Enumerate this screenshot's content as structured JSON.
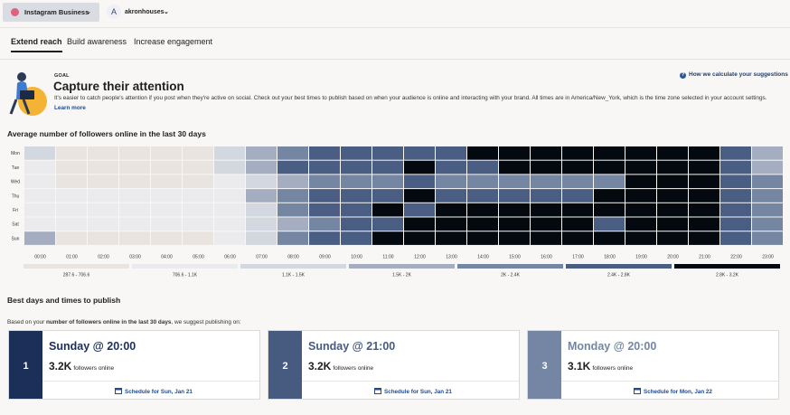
{
  "topbar": {
    "account": "Instagram Business",
    "avatar": "A",
    "profile": "akronhouses"
  },
  "tabs": [
    "Extend reach",
    "Build awareness",
    "Increase engagement"
  ],
  "goal": {
    "label": "GOAL",
    "title": "Capture their attention",
    "description": "It's easier to catch people's attention if you post when they're active on social. Check out your best times to publish based on when your audience is online and interacting with your brand. All times are in America/New_York, which is the time zone selected in your account settings.",
    "link": "Learn more",
    "help": "How we calculate your suggestions"
  },
  "heatmap": {
    "title": "Average number of followers online in the last 30 days",
    "days": [
      "Mon",
      "Tue",
      "Wed",
      "Thu",
      "Fri",
      "Sat",
      "Sun"
    ],
    "hours": [
      "00:00",
      "01:00",
      "02:00",
      "03:00",
      "04:00",
      "05:00",
      "06:00",
      "07:00",
      "08:00",
      "09:00",
      "10:00",
      "11:00",
      "12:00",
      "13:00",
      "14:00",
      "15:00",
      "16:00",
      "17:00",
      "18:00",
      "19:00",
      "20:00",
      "21:00",
      "22:00",
      "23:00"
    ],
    "levels": [
      [
        2,
        0,
        0,
        0,
        0,
        0,
        2,
        3,
        4,
        5,
        5,
        5,
        5,
        5,
        6,
        6,
        6,
        6,
        6,
        6,
        6,
        6,
        5,
        3
      ],
      [
        1,
        0,
        0,
        0,
        0,
        0,
        2,
        3,
        5,
        5,
        5,
        5,
        6,
        5,
        5,
        6,
        6,
        6,
        6,
        6,
        6,
        6,
        5,
        3
      ],
      [
        1,
        0,
        0,
        0,
        0,
        0,
        1,
        2,
        3,
        4,
        4,
        4,
        5,
        4,
        4,
        4,
        4,
        4,
        4,
        6,
        6,
        6,
        5,
        4
      ],
      [
        1,
        1,
        1,
        1,
        1,
        1,
        1,
        3,
        4,
        5,
        5,
        5,
        6,
        5,
        5,
        5,
        5,
        5,
        6,
        6,
        6,
        6,
        5,
        4
      ],
      [
        1,
        1,
        1,
        1,
        1,
        1,
        1,
        2,
        4,
        5,
        5,
        6,
        5,
        6,
        6,
        6,
        6,
        6,
        6,
        6,
        6,
        6,
        5,
        4
      ],
      [
        1,
        1,
        1,
        1,
        1,
        1,
        1,
        2,
        3,
        4,
        5,
        5,
        6,
        6,
        6,
        6,
        6,
        6,
        5,
        6,
        6,
        6,
        5,
        4
      ],
      [
        3,
        0,
        0,
        0,
        0,
        0,
        1,
        2,
        4,
        5,
        5,
        6,
        6,
        6,
        6,
        6,
        6,
        6,
        6,
        6,
        6,
        6,
        5,
        4
      ]
    ],
    "legend": [
      {
        "label": "287.6 - 706.6",
        "color": "#e9e4df"
      },
      {
        "label": "706.6 - 1.1K",
        "color": "#ebebee"
      },
      {
        "label": "1.1K - 1.5K",
        "color": "#d3d7df"
      },
      {
        "label": "1.5K - 2K",
        "color": "#a4aec0"
      },
      {
        "label": "2K - 2.4K",
        "color": "#7586a3"
      },
      {
        "label": "2.4K - 2.8K",
        "color": "#4a5d82"
      },
      {
        "label": "2.8K - 3.2K",
        "color": "#04080f"
      }
    ]
  },
  "suggestions": {
    "title": "Best days and times to publish",
    "intro_prefix": "Based on your ",
    "intro_bold": "number of followers online in the last 30 days",
    "intro_suffix": ", we suggest publishing on:",
    "items": [
      {
        "rank": 1,
        "slot": "Sunday @ 20:00",
        "count": "3.2K",
        "count_label": "followers online",
        "action": "Schedule for Sun, Jan 21",
        "color": "#1c2f58"
      },
      {
        "rank": 2,
        "slot": "Sunday @ 21:00",
        "count": "3.2K",
        "count_label": "followers online",
        "action": "Schedule for Sun, Jan 21",
        "color": "#475a7f"
      },
      {
        "rank": 3,
        "slot": "Monday @ 20:00",
        "count": "3.1K",
        "count_label": "followers online",
        "action": "Schedule for Mon, Jan 22",
        "color": "#7486a3"
      }
    ]
  }
}
